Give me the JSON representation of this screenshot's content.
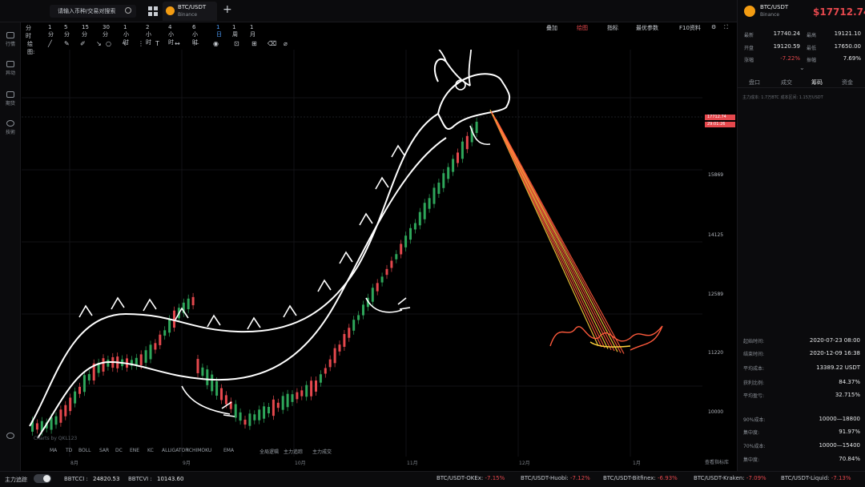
{
  "topbar": {
    "search_placeholder": "请输入币种/交易对搜索",
    "tab": {
      "symbol": "BTC/USDT",
      "exchange": "Binance"
    }
  },
  "leftbar": {
    "items": [
      {
        "label": "行情",
        "icon": "chart-icon"
      },
      {
        "label": "异动",
        "icon": "alert-icon"
      },
      {
        "label": "期货",
        "icon": "futures-icon"
      },
      {
        "label": "技術",
        "icon": "gear-icon"
      }
    ]
  },
  "timeframes": [
    "分时",
    "1分",
    "5分",
    "15分",
    "30分",
    "1小时",
    "2小时",
    "4小时",
    "6小时",
    "1日",
    "1周",
    "1月"
  ],
  "timeframe_active": "1日",
  "chart_tools": {
    "overlay": "叠加",
    "draw": "绘图",
    "indicators": "指标",
    "params": "最优参数",
    "f10": "F10资料"
  },
  "draw_label": "绘图:",
  "chart": {
    "y_labels": [
      {
        "text": "15869",
        "price": 15869
      },
      {
        "text": "14125",
        "price": 14125
      },
      {
        "text": "12589",
        "price": 12589
      },
      {
        "text": "11220",
        "price": 11220
      },
      {
        "text": "10000",
        "price": 10000
      }
    ],
    "x_labels": [
      "8月",
      "9月",
      "10月",
      "11月",
      "12月",
      "1月"
    ],
    "price_tag_1": "17712.74",
    "price_tag_2": "29:01:26",
    "price_tag_3": "17600",
    "watermark": "Charts by QKL123",
    "indicators": [
      "MA",
      "TD",
      "BOLL",
      "SAR",
      "DC",
      "ENE",
      "KC",
      "ALLIGATOR",
      "ICHIMOKU",
      "EMA",
      "全局逻辑",
      "主力追踪",
      "主力成交"
    ],
    "more_indicators": "查看指标库",
    "colors": {
      "up": "#2ea65a",
      "down": "#e5484d",
      "drawing": "#ffffff",
      "fire": "#ff5a3c"
    }
  },
  "right_panel": {
    "symbol": "BTC/USDT",
    "exchange": "Binance",
    "price": "$17712.74",
    "stats": [
      {
        "k": "最新",
        "v": "17740.24",
        "k2": "最高",
        "v2": "19121.10"
      },
      {
        "k": "开盘",
        "v": "19120.59",
        "k2": "最低",
        "v2": "17650.00"
      },
      {
        "k": "涨幅",
        "v": "-7.22%",
        "k2": "振幅",
        "v2": "7.69%"
      }
    ],
    "tabs": [
      "盘口",
      "成交",
      "筹码",
      "资金"
    ],
    "tab_active": "筹码",
    "sub": "主力成本: 1.7万BTC    成本区间: 1.15万USDT",
    "info": [
      {
        "k": "起始时间:",
        "v": "2020-07-23 08:00"
      },
      {
        "k": "结束时间:",
        "v": "2020-12-09 16:38"
      },
      {
        "k": "平均成本:",
        "v": "13389.22 USDT"
      },
      {
        "k": "获利比例:",
        "v": "84.37%"
      },
      {
        "k": "平均盈亏:",
        "v": "32.715%"
      },
      {
        "k": "90%成本:",
        "v": "10000—18800"
      },
      {
        "k": "集中度:",
        "v": "91.97%"
      },
      {
        "k": "70%成本:",
        "v": "10000—15400"
      },
      {
        "k": "集中度:",
        "v": "70.84%"
      }
    ]
  },
  "bottombar": {
    "toggle_label": "主力追踪",
    "tickers": [
      {
        "name": "BBTCCI :",
        "value": "24820.53"
      },
      {
        "name": "BBTCVI :",
        "value": "10143.60"
      }
    ],
    "markets": [
      {
        "name": "BTC/USDT-OKEx:",
        "change": "-7.15%"
      },
      {
        "name": "BTC/USDT-Huobi:",
        "change": "-7.12%"
      },
      {
        "name": "BTC/USDT-Bitfinex:",
        "change": "-6.93%"
      },
      {
        "name": "BTC/USDT-Kraken:",
        "change": "-7.09%"
      },
      {
        "name": "BTC/USDT-Liquid:",
        "change": "-7.13%"
      }
    ]
  }
}
